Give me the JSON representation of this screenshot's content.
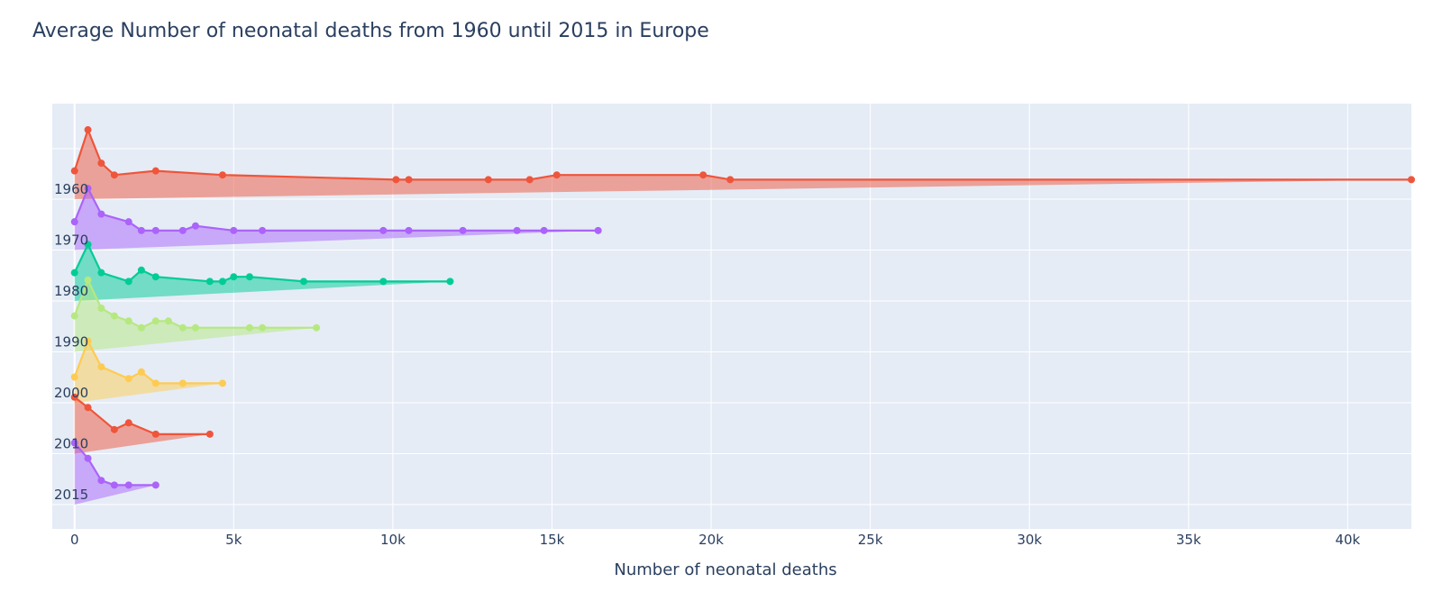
{
  "chart_data": {
    "type": "area",
    "title": "Average Number of neonatal deaths from 1960 until 2015 in Europe",
    "xlabel": "Number of neonatal deaths",
    "ylabel": "",
    "xlim": [
      -700,
      42000
    ],
    "x_ticks": [
      0,
      5000,
      10000,
      15000,
      20000,
      25000,
      30000,
      35000,
      40000
    ],
    "x_tick_labels": [
      "0",
      "5k",
      "10k",
      "15k",
      "20k",
      "25k",
      "30k",
      "35k",
      "40k"
    ],
    "grid": true,
    "legend": "none",
    "series": [
      {
        "name": "1960",
        "color": "#EF553B",
        "points": [
          [
            0,
            0.55
          ],
          [
            420,
            1.35
          ],
          [
            840,
            0.7
          ],
          [
            1250,
            0.47
          ],
          [
            2550,
            0.55
          ],
          [
            4650,
            0.47
          ],
          [
            10100,
            0.38
          ],
          [
            10500,
            0.38
          ],
          [
            13000,
            0.38
          ],
          [
            14300,
            0.38
          ],
          [
            15150,
            0.47
          ],
          [
            19750,
            0.47
          ],
          [
            20600,
            0.38
          ],
          [
            42000,
            0.38
          ]
        ]
      },
      {
        "name": "1970",
        "color": "#AB63FA",
        "points": [
          [
            0,
            0.55
          ],
          [
            420,
            1.2
          ],
          [
            840,
            0.7
          ],
          [
            1700,
            0.55
          ],
          [
            2100,
            0.38
          ],
          [
            2550,
            0.38
          ],
          [
            3400,
            0.38
          ],
          [
            3800,
            0.47
          ],
          [
            5000,
            0.38
          ],
          [
            5900,
            0.38
          ],
          [
            9700,
            0.38
          ],
          [
            10500,
            0.38
          ],
          [
            12200,
            0.38
          ],
          [
            13900,
            0.38
          ],
          [
            14750,
            0.38
          ],
          [
            16450,
            0.38
          ]
        ]
      },
      {
        "name": "1980",
        "color": "#00CC96",
        "points": [
          [
            0,
            0.55
          ],
          [
            420,
            1.1
          ],
          [
            840,
            0.55
          ],
          [
            1700,
            0.38
          ],
          [
            2100,
            0.6
          ],
          [
            2550,
            0.47
          ],
          [
            4250,
            0.38
          ],
          [
            4650,
            0.38
          ],
          [
            5000,
            0.47
          ],
          [
            5500,
            0.47
          ],
          [
            7200,
            0.38
          ],
          [
            9700,
            0.38
          ],
          [
            11800,
            0.38
          ]
        ]
      },
      {
        "name": "1990",
        "color": "#B6E880",
        "points": [
          [
            0,
            0.7
          ],
          [
            420,
            1.4
          ],
          [
            840,
            0.85
          ],
          [
            1250,
            0.7
          ],
          [
            1700,
            0.6
          ],
          [
            2100,
            0.47
          ],
          [
            2550,
            0.6
          ],
          [
            2950,
            0.6
          ],
          [
            3400,
            0.47
          ],
          [
            3800,
            0.47
          ],
          [
            5500,
            0.47
          ],
          [
            5900,
            0.47
          ],
          [
            7600,
            0.47
          ]
        ]
      },
      {
        "name": "2000",
        "color": "#FECB52",
        "points": [
          [
            0,
            0.5
          ],
          [
            420,
            1.2
          ],
          [
            840,
            0.7
          ],
          [
            1700,
            0.47
          ],
          [
            2100,
            0.6
          ],
          [
            2550,
            0.38
          ],
          [
            3400,
            0.38
          ],
          [
            4650,
            0.38
          ]
        ]
      },
      {
        "name": "2010",
        "color": "#EF553B",
        "points": [
          [
            0,
            1.1
          ],
          [
            420,
            0.9
          ],
          [
            1250,
            0.47
          ],
          [
            1700,
            0.6
          ],
          [
            2550,
            0.38
          ],
          [
            4250,
            0.38
          ]
        ]
      },
      {
        "name": "2015",
        "color": "#AB63FA",
        "points": [
          [
            0,
            1.2
          ],
          [
            420,
            0.9
          ],
          [
            840,
            0.47
          ],
          [
            1250,
            0.38
          ],
          [
            1700,
            0.38
          ],
          [
            2550,
            0.38
          ]
        ]
      }
    ]
  }
}
